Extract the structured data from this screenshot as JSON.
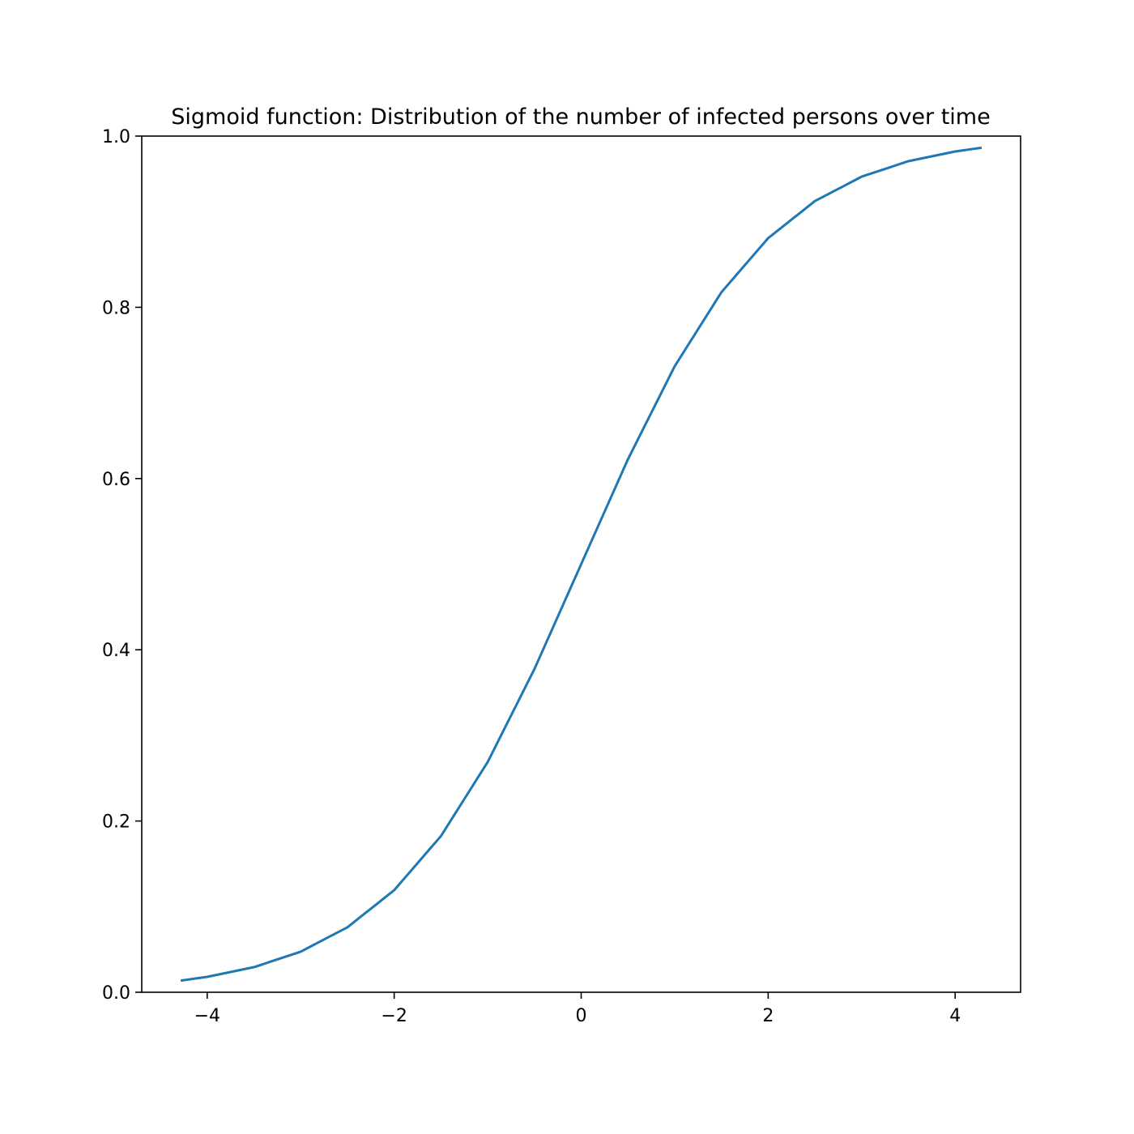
{
  "chart_data": {
    "type": "line",
    "title": "Sigmoid function: Distribution of the number of infected persons over time",
    "xlabel": "",
    "ylabel": "",
    "xlim": [
      -4.7,
      4.7
    ],
    "ylim": [
      0.0,
      1.0
    ],
    "x_ticks": [
      -4,
      -2,
      0,
      2,
      4
    ],
    "x_tick_labels": [
      "−4",
      "−2",
      "0",
      "2",
      "4"
    ],
    "y_ticks": [
      0.0,
      0.2,
      0.4,
      0.6,
      0.8,
      1.0
    ],
    "y_tick_labels": [
      "0.0",
      "0.2",
      "0.4",
      "0.6",
      "0.8",
      "1.0"
    ],
    "grid": false,
    "legend": "none",
    "series": [
      {
        "color": "#1f77b4",
        "x": [
          -4.27,
          -4.0,
          -3.5,
          -3.0,
          -2.5,
          -2.0,
          -1.5,
          -1.0,
          -0.5,
          0.0,
          0.5,
          1.0,
          1.5,
          2.0,
          2.5,
          3.0,
          3.5,
          4.0,
          4.27
        ],
        "y": [
          0.0138,
          0.018,
          0.0293,
          0.0474,
          0.0759,
          0.1192,
          0.1824,
          0.2689,
          0.3775,
          0.5,
          0.6225,
          0.7311,
          0.8176,
          0.8808,
          0.9241,
          0.9526,
          0.9707,
          0.982,
          0.9862
        ]
      }
    ]
  }
}
